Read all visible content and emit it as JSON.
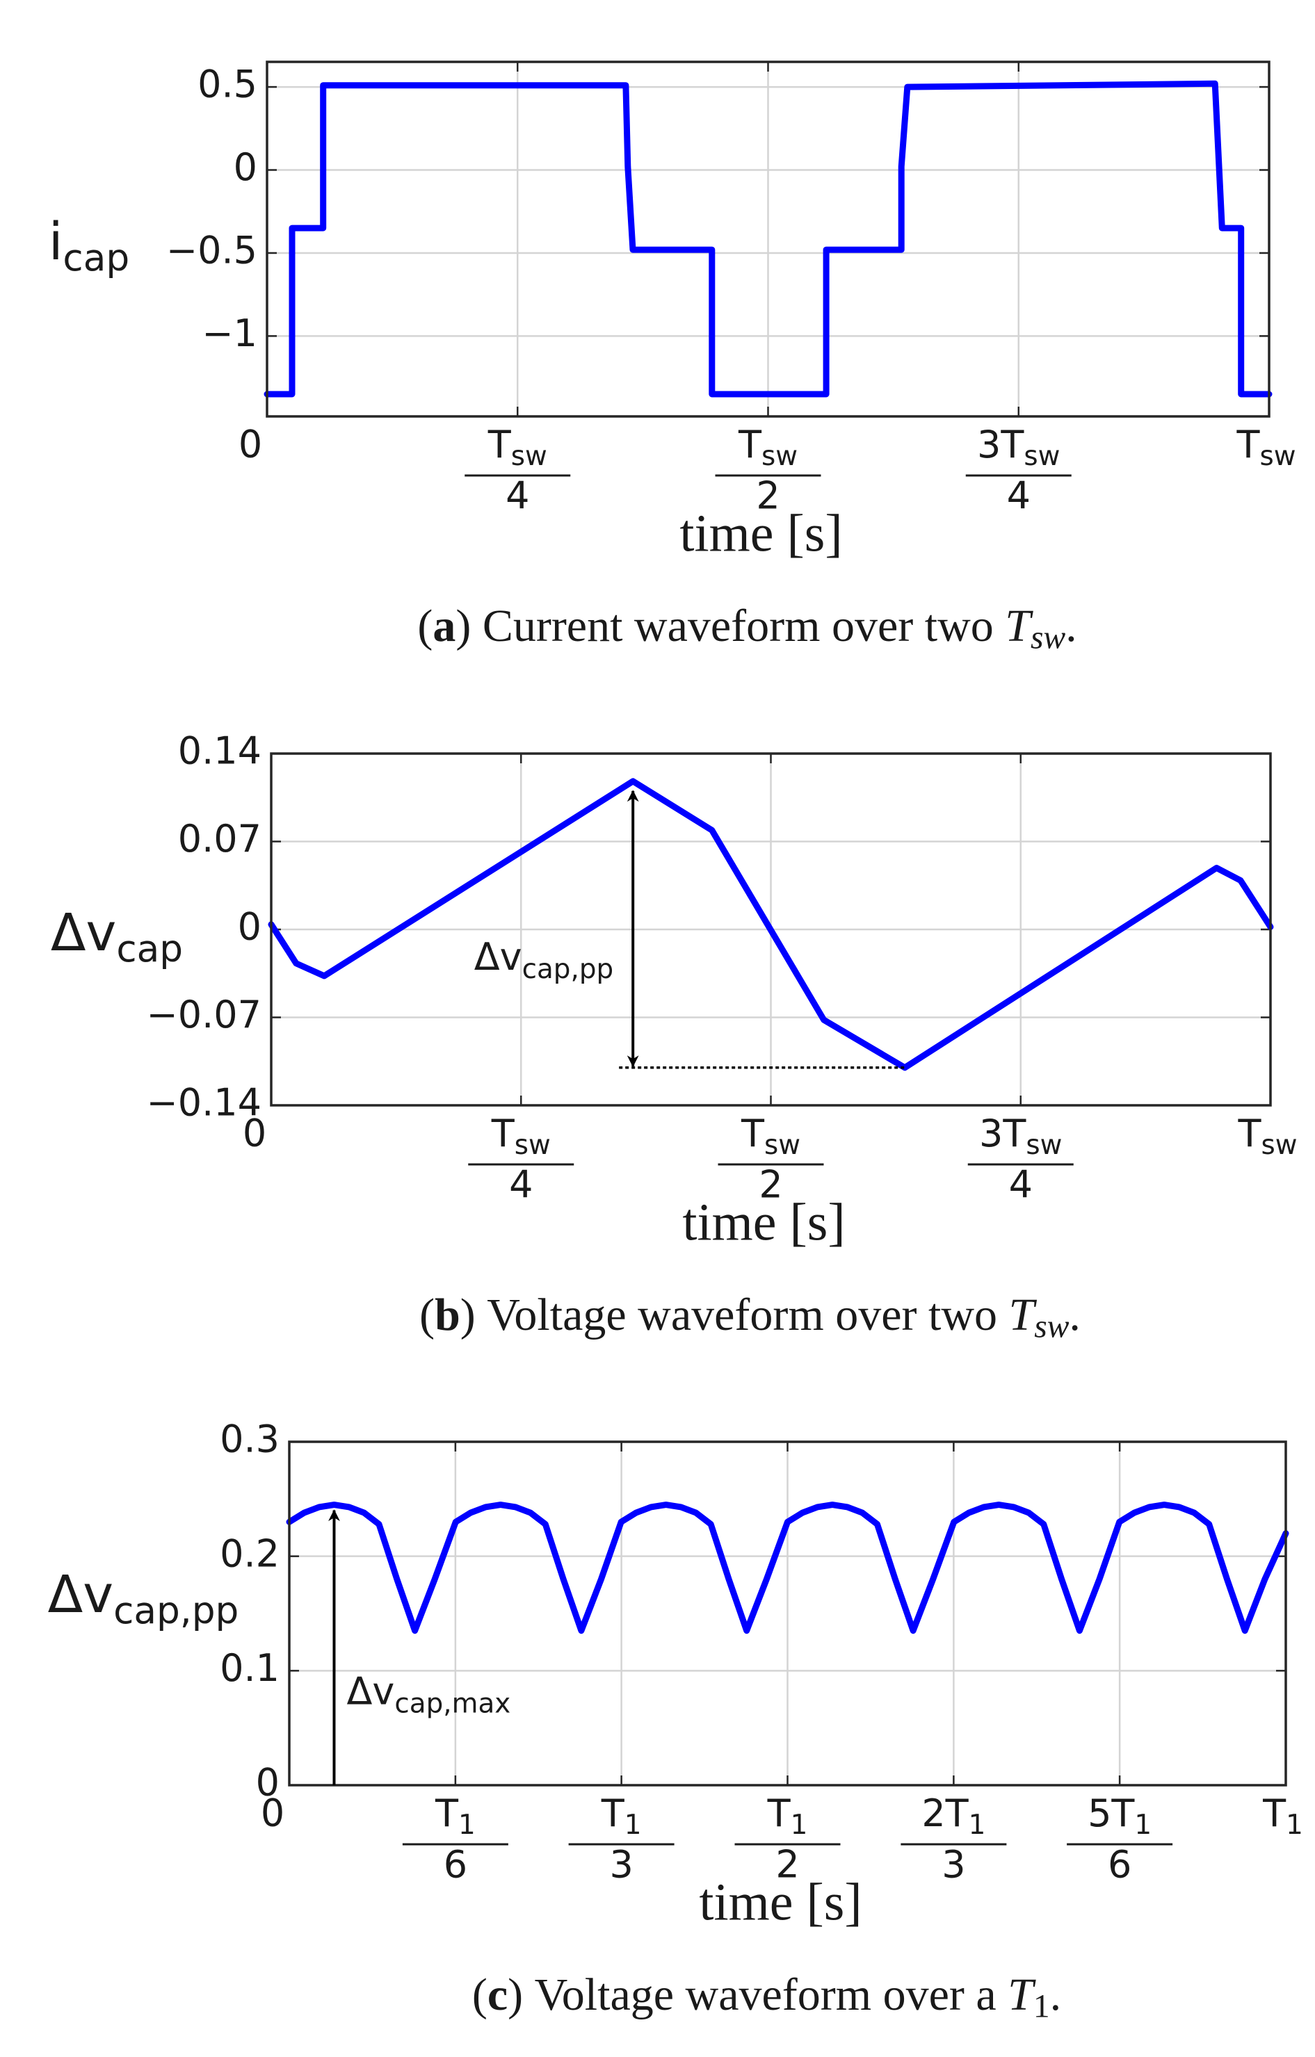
{
  "chart_data": [
    {
      "type": "line",
      "y_label": {
        "text": "i",
        "sub": "cap"
      },
      "x_label": "time [s]",
      "caption": {
        "open": "(",
        "tag": "a",
        "close": ")",
        "text": "Current waveform over two",
        "symbol": "T",
        "symbol_sub": "sw",
        "end": "."
      },
      "xlim": [
        0,
        1
      ],
      "ylim": [
        -1.484,
        0.651
      ],
      "xticks": [
        0,
        {
          "value": 0.25,
          "label": {
            "num": "T",
            "sub": "sw",
            "den": "4"
          }
        },
        {
          "value": 0.5,
          "label": {
            "num": "T",
            "sub": "sw",
            "den": "2"
          }
        },
        {
          "value": 0.75,
          "label": {
            "num": "3T",
            "sub": "sw",
            "den": "4"
          }
        },
        {
          "value": 1,
          "label": {
            "num": "T",
            "sub": "sw"
          }
        }
      ],
      "yticks": [
        0.5,
        0,
        {
          "value": -0.5,
          "label": "−0.5"
        },
        {
          "value": -1,
          "label": "−1"
        }
      ],
      "grid": true,
      "series": [
        {
          "color": "#0000ff",
          "x": [
            0,
            0.025,
            0.025,
            0.056,
            0.056,
            0.358,
            0.36,
            0.365,
            0.444,
            0.444,
            0.558,
            0.558,
            0.633,
            0.633,
            0.639,
            0.946,
            0.953,
            0.972,
            0.972,
            1
          ],
          "values": [
            -1.35,
            -1.35,
            -0.35,
            -0.35,
            0.51,
            0.51,
            0.02,
            -0.48,
            -0.48,
            -1.35,
            -1.35,
            -0.48,
            -0.48,
            0.02,
            0.5,
            0.52,
            -0.35,
            -0.35,
            -1.35,
            -1.35
          ]
        }
      ]
    },
    {
      "type": "line",
      "y_label": {
        "text": "Δv",
        "sub": "cap"
      },
      "x_label": "time [s]",
      "caption": {
        "open": "(",
        "tag": "b",
        "close": ")",
        "text": "Voltage waveform over two",
        "symbol": "T",
        "symbol_sub": "sw",
        "end": "."
      },
      "annotation": {
        "text": "Δv",
        "sub": "cap,pp"
      },
      "xlim": [
        0,
        1
      ],
      "ylim": [
        -0.14,
        0.14
      ],
      "xticks": [
        0,
        {
          "value": 0.25,
          "label": {
            "num": "T",
            "sub": "sw",
            "den": "4"
          }
        },
        {
          "value": 0.5,
          "label": {
            "num": "T",
            "sub": "sw",
            "den": "2"
          }
        },
        {
          "value": 0.75,
          "label": {
            "num": "3T",
            "sub": "sw",
            "den": "4"
          }
        },
        {
          "value": 1,
          "label": {
            "num": "T",
            "sub": "sw"
          }
        }
      ],
      "yticks": [
        0.14,
        0.07,
        0,
        {
          "value": -0.07,
          "label": "−0.07"
        },
        {
          "value": -0.14,
          "label": "−0.14"
        }
      ],
      "grid": true,
      "series": [
        {
          "color": "#0000ff",
          "x": [
            0,
            0.025,
            0.053,
            0.362,
            0.441,
            0.553,
            0.634,
            0.946,
            0.97,
            1
          ],
          "values": [
            0.004,
            -0.027,
            -0.037,
            0.118,
            0.079,
            -0.072,
            -0.11,
            0.049,
            0.039,
            0.002
          ]
        }
      ]
    },
    {
      "type": "line",
      "y_label": {
        "text": "Δv",
        "sub": "cap,pp"
      },
      "x_label": "time [s]",
      "caption": {
        "open": "(",
        "tag": "c",
        "close": ")",
        "text": "Voltage waveform over a",
        "symbol": "T",
        "symbol_sub": "1",
        "end": "."
      },
      "annotation": {
        "text": "Δv",
        "sub": "cap,max"
      },
      "xlim": [
        0,
        1
      ],
      "ylim": [
        0,
        0.3
      ],
      "xticks": [
        0,
        {
          "value": 0.1667,
          "label": {
            "num": "T",
            "sub": "1",
            "den": "6"
          }
        },
        {
          "value": 0.3333,
          "label": {
            "num": "T",
            "sub": "1",
            "den": "3"
          }
        },
        {
          "value": 0.5,
          "label": {
            "num": "T",
            "sub": "1",
            "den": "2"
          }
        },
        {
          "value": 0.6667,
          "label": {
            "num": "2T",
            "sub": "1",
            "den": "3"
          }
        },
        {
          "value": 0.8333,
          "label": {
            "num": "5T",
            "sub": "1",
            "den": "6"
          }
        },
        {
          "value": 1,
          "label": {
            "num": "T",
            "sub": "1"
          }
        }
      ],
      "yticks": [
        0.3,
        0.2,
        0.1,
        0
      ],
      "grid": true,
      "series": [
        {
          "color": "#0000ff",
          "x": [
            0,
            0.015,
            0.03,
            0.045,
            0.06,
            0.075,
            0.09,
            0.108,
            0.126,
            0.146,
            0.167,
            0.182,
            0.197,
            0.212,
            0.227,
            0.242,
            0.257,
            0.275,
            0.293,
            0.313,
            0.333,
            0.348,
            0.363,
            0.378,
            0.393,
            0.408,
            0.423,
            0.441,
            0.459,
            0.479,
            0.5,
            0.515,
            0.53,
            0.545,
            0.56,
            0.575,
            0.59,
            0.608,
            0.626,
            0.646,
            0.667,
            0.682,
            0.697,
            0.712,
            0.727,
            0.742,
            0.757,
            0.775,
            0.793,
            0.813,
            0.833,
            0.848,
            0.863,
            0.878,
            0.893,
            0.908,
            0.923,
            0.941,
            0.959,
            0.979,
            1
          ],
          "values": [
            0.23,
            0.238,
            0.243,
            0.245,
            0.243,
            0.238,
            0.228,
            0.18,
            0.135,
            0.18,
            0.23,
            0.238,
            0.243,
            0.245,
            0.243,
            0.238,
            0.228,
            0.18,
            0.135,
            0.18,
            0.23,
            0.238,
            0.243,
            0.245,
            0.243,
            0.238,
            0.228,
            0.18,
            0.135,
            0.18,
            0.23,
            0.238,
            0.243,
            0.245,
            0.243,
            0.238,
            0.228,
            0.18,
            0.135,
            0.18,
            0.23,
            0.238,
            0.243,
            0.245,
            0.243,
            0.238,
            0.228,
            0.18,
            0.135,
            0.18,
            0.23,
            0.238,
            0.243,
            0.245,
            0.243,
            0.238,
            0.228,
            0.18,
            0.135,
            0.18,
            0.22
          ]
        }
      ]
    }
  ]
}
